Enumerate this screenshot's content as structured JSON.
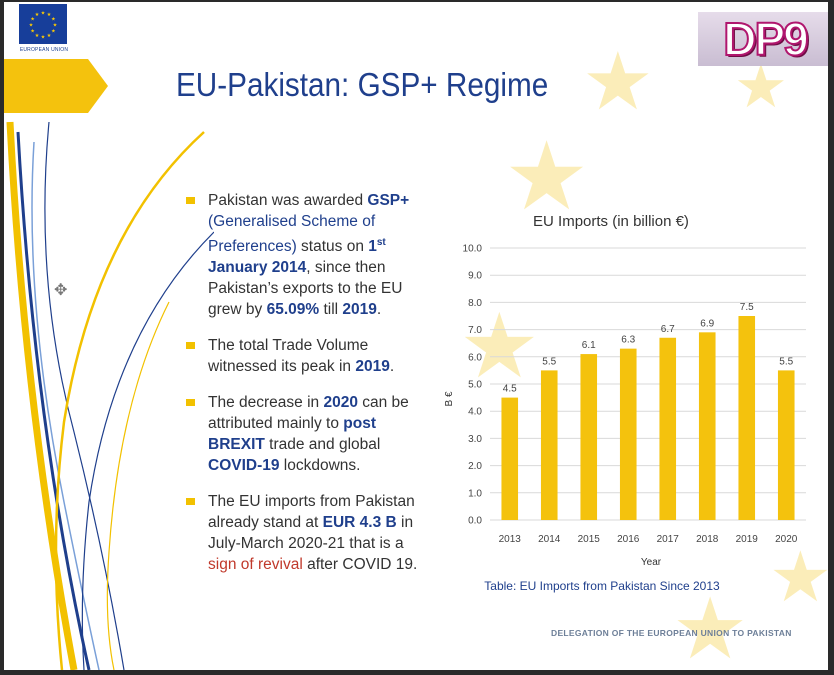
{
  "eu_logo": {
    "caption": "EUROPEAN UNION"
  },
  "title": "EU-Pakistan: GSP+ Regime",
  "brand": {
    "logo_text": "DP9"
  },
  "bullets": {
    "b1": {
      "t1": "Pakistan was awarded ",
      "gsp": "GSP+",
      "paren": "(Generalised Scheme of Preferences)",
      "t2": " status on ",
      "date_day": "1",
      "date_sup": "st",
      "date_month": " January",
      "date_year": "2014",
      "t3": ", since then Pakistan’s exports to the EU grew by ",
      "pct": "65.09%",
      "t4": " till ",
      "year_end": "2019",
      "t5": "."
    },
    "b2": {
      "t1": "The total Trade Volume witnessed its peak in ",
      "year": "2019",
      "t2": "."
    },
    "b3": {
      "t1": "The decrease in ",
      "year": "2020",
      "t2": " can be attributed mainly to ",
      "post": "post",
      "brexit": "BREXIT",
      "t3": " trade and global ",
      "covid": "COVID-19",
      "t4": " lockdowns."
    },
    "b4": {
      "t1": "The EU imports from Pakistan already stand at ",
      "amount": "EUR 4.3 B",
      "t2": " in July-March 2020-21 that is a ",
      "revival": "sign of revival",
      "t3": " after COVID 19."
    }
  },
  "chart_data": {
    "type": "bar",
    "title": "EU Imports (in billion €)",
    "xlabel": "Year",
    "ylabel": "B €",
    "categories": [
      "2013",
      "2014",
      "2015",
      "2016",
      "2017",
      "2018",
      "2019",
      "2020"
    ],
    "values": [
      4.5,
      5.5,
      6.1,
      6.3,
      6.7,
      6.9,
      7.5,
      5.5
    ],
    "ylim": [
      0,
      10
    ],
    "yticks": [
      "0.0",
      "1.0",
      "2.0",
      "3.0",
      "4.0",
      "5.0",
      "6.0",
      "7.0",
      "8.0",
      "9.0",
      "10.0"
    ],
    "grid": true,
    "bar_color": "#f4c20d",
    "caption": "Table: EU Imports from Pakistan Since 2013"
  },
  "footer": "DELEGATION OF THE EUROPEAN UNION TO PAKISTAN",
  "colors": {
    "accent_blue": "#1f3f8c",
    "accent_yellow": "#f4c20d",
    "revival_red": "#c0392b"
  },
  "icons": {
    "move": "move-cross-icon"
  }
}
